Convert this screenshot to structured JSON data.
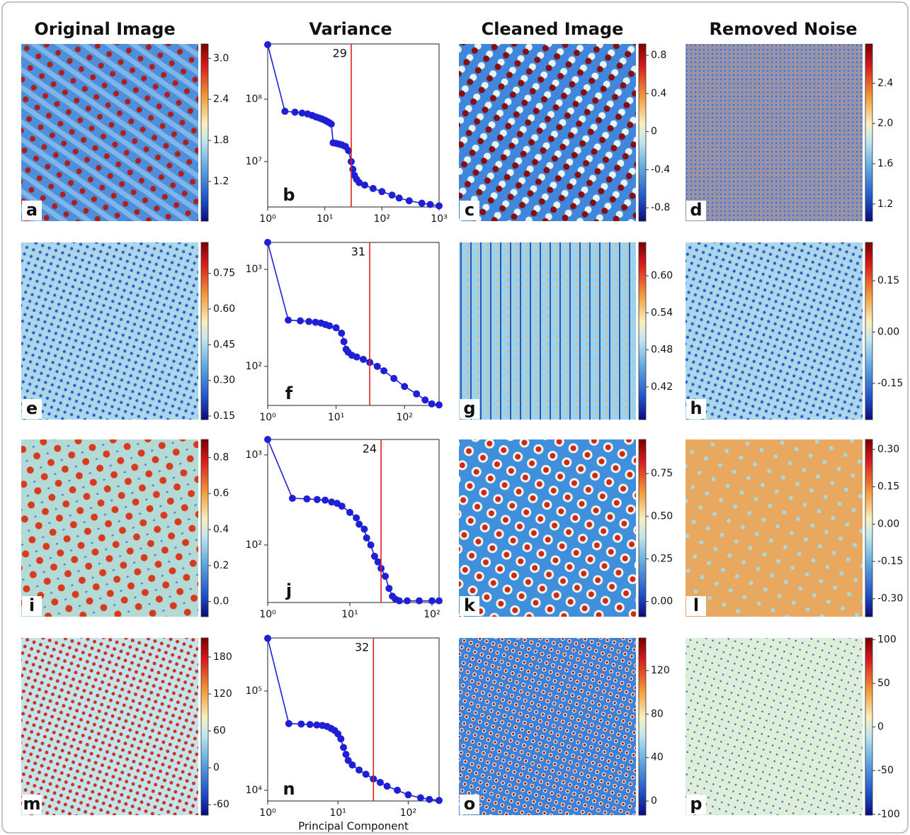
{
  "column_titles": [
    "Original Image",
    "Variance",
    "Cleaned Image",
    "Removed Noise"
  ],
  "chart_data": [
    {
      "type": "heatmap",
      "label": "a",
      "clim": [
        0.62,
        3.21
      ],
      "cticks": [
        {
          "value": 3,
          "label": "3.0"
        },
        2.4,
        1.8,
        1.2
      ]
    },
    {
      "type": "line",
      "label": "b",
      "log_x": true,
      "log_y": true,
      "color": "#1f1fd6",
      "xlim": [
        1,
        1000
      ],
      "ylim": [
        1870000,
        770000000
      ],
      "xticks": [
        {
          "value": 1,
          "label": "10⁰"
        },
        {
          "value": 10,
          "label": "10¹"
        },
        {
          "value": 100,
          "label": "10²"
        },
        {
          "value": 1000,
          "label": "10³"
        }
      ],
      "yticks": [
        {
          "value": 10000000,
          "label": "10⁷"
        },
        {
          "value": 100000000,
          "label": "10⁸"
        }
      ],
      "x": [
        1,
        2,
        3,
        4,
        5,
        6,
        7,
        8,
        9,
        10,
        11,
        12,
        13,
        14,
        16,
        18,
        20,
        23,
        26,
        29,
        31,
        33,
        36,
        40,
        50,
        70,
        100,
        150,
        200,
        300,
        500,
        700,
        1000
      ],
      "values": [
        750000000,
        64000000,
        62000000,
        60000000,
        58000000,
        55000000,
        52000000,
        50000000,
        48000000,
        46000000,
        44000000,
        42000000,
        40000000,
        20000000,
        19500000,
        19000000,
        18500000,
        17500000,
        15000000,
        10000000,
        7500000,
        6000000,
        5200000,
        4600000,
        4200000,
        3700000,
        3300000,
        2900000,
        2600000,
        2350000,
        2150000,
        2050000,
        1950000
      ],
      "cutoff": 29,
      "cutoff_color": "#e0201b"
    },
    {
      "type": "heatmap",
      "label": "c",
      "clim": [
        -0.94,
        0.92
      ],
      "cticks": [
        0.8,
        0.4,
        0,
        -0.4,
        -0.8
      ]
    },
    {
      "type": "heatmap",
      "label": "d",
      "clim": [
        1.03,
        2.79
      ],
      "cticks": [
        2.4,
        {
          "value": 2,
          "label": "2.0"
        },
        1.6,
        1.2
      ]
    },
    {
      "type": "heatmap",
      "label": "e",
      "clim": [
        0.135,
        0.88
      ],
      "cticks": [
        0.75,
        {
          "value": 0.6,
          "label": "0.60"
        },
        0.45,
        {
          "value": 0.3,
          "label": "0.30"
        },
        0.15
      ]
    },
    {
      "type": "line",
      "label": "f",
      "log_x": true,
      "log_y": true,
      "color": "#1f1fd6",
      "xlim": [
        1,
        320
      ],
      "ylim": [
        39.5,
        1900
      ],
      "xticks": [
        {
          "value": 1,
          "label": "10⁰"
        },
        {
          "value": 10,
          "label": "10¹"
        },
        {
          "value": 100,
          "label": "10²"
        }
      ],
      "yticks": [
        {
          "value": 100,
          "label": "10²"
        },
        {
          "value": 1000,
          "label": "10³"
        }
      ],
      "x": [
        1,
        2,
        3,
        4,
        5,
        6,
        7,
        8,
        10,
        12,
        13,
        14,
        15,
        17,
        20,
        25,
        31,
        40,
        50,
        70,
        100,
        150,
        200,
        250,
        320
      ],
      "values": [
        1900,
        300,
        295,
        290,
        285,
        280,
        270,
        262,
        250,
        220,
        180,
        150,
        140,
        130,
        125,
        118,
        110,
        100,
        90,
        75,
        62,
        52,
        45,
        41,
        40
      ],
      "cutoff": 31,
      "cutoff_color": "#e0201b"
    },
    {
      "type": "heatmap",
      "label": "g",
      "clim": [
        0.367,
        0.654
      ],
      "cticks": [
        {
          "value": 0.6,
          "label": "0.60"
        },
        0.54,
        0.48,
        0.42
      ]
    },
    {
      "type": "heatmap",
      "label": "h",
      "clim": [
        -0.256,
        0.262
      ],
      "cticks": [
        0.15,
        {
          "value": 0,
          "label": "0.00"
        },
        -0.15
      ]
    },
    {
      "type": "heatmap",
      "label": "i",
      "clim": [
        -0.084,
        0.9
      ],
      "cticks": [
        0.8,
        0.6,
        0.4,
        0.2,
        {
          "value": 0,
          "label": "0.0"
        }
      ]
    },
    {
      "type": "line",
      "label": "j",
      "log_x": true,
      "log_y": true,
      "color": "#1f1fd6",
      "xlim": [
        1,
        122
      ],
      "ylim": [
        23,
        1485
      ],
      "xticks": [
        {
          "value": 1,
          "label": "10⁰"
        },
        {
          "value": 10,
          "label": "10¹"
        },
        {
          "value": 100,
          "label": "10²"
        }
      ],
      "yticks": [
        {
          "value": 100,
          "label": "10²"
        },
        {
          "value": 1000,
          "label": "10³"
        }
      ],
      "x": [
        1,
        2,
        3,
        4,
        5,
        6,
        7,
        8,
        10,
        12,
        13,
        15,
        16,
        18,
        20,
        22,
        24,
        27,
        30,
        33,
        36,
        40,
        50,
        70,
        100,
        122
      ],
      "values": [
        1485,
        330,
        325,
        320,
        315,
        300,
        290,
        270,
        230,
        200,
        170,
        150,
        120,
        100,
        75,
        65,
        55,
        45,
        33,
        27,
        25,
        24,
        24,
        24,
        24,
        24
      ],
      "cutoff": 24,
      "cutoff_color": "#e0201b"
    },
    {
      "type": "heatmap",
      "label": "k",
      "clim": [
        -0.089,
        0.95
      ],
      "cticks": [
        0.75,
        {
          "value": 0.5,
          "label": "0.50"
        },
        0.25,
        {
          "value": 0,
          "label": "0.00"
        }
      ]
    },
    {
      "type": "heatmap",
      "label": "l",
      "clim": [
        -0.372,
        0.34
      ],
      "cticks": [
        {
          "value": 0.3,
          "label": "0.30"
        },
        0.15,
        {
          "value": 0,
          "label": "0.00"
        },
        -0.15,
        {
          "value": -0.3,
          "label": "-0.30"
        }
      ]
    },
    {
      "type": "heatmap",
      "label": "m",
      "clim": [
        -77,
        211
      ],
      "cticks": [
        180,
        120,
        60,
        0,
        -60
      ]
    },
    {
      "type": "line",
      "label": "n",
      "log_x": true,
      "log_y": true,
      "color": "#1f1fd6",
      "xlim": [
        1,
        275
      ],
      "ylim": [
        7800,
        343000
      ],
      "xticks": [
        {
          "value": 1,
          "label": "10⁰"
        },
        {
          "value": 10,
          "label": "10¹"
        },
        {
          "value": 100,
          "label": "10²"
        }
      ],
      "yticks": [
        {
          "value": 10000,
          "label": "10⁴"
        },
        {
          "value": 100000,
          "label": "10⁵"
        }
      ],
      "x": [
        1,
        2,
        3,
        4,
        5,
        6,
        7,
        8,
        9,
        10,
        11,
        12,
        13,
        14,
        16,
        20,
        25,
        32,
        40,
        50,
        70,
        100,
        150,
        200,
        275
      ],
      "values": [
        340000,
        47000,
        46500,
        46000,
        45500,
        45000,
        44000,
        42000,
        40000,
        37000,
        33000,
        27000,
        23000,
        20000,
        18000,
        16000,
        14500,
        13000,
        12000,
        11000,
        10000,
        9000,
        8400,
        8100,
        7900
      ],
      "xlabel": "Principal Component",
      "cutoff": 32,
      "cutoff_color": "#e0201b"
    },
    {
      "type": "heatmap",
      "label": "o",
      "clim": [
        -13,
        150
      ],
      "cticks": [
        120,
        80,
        40,
        0
      ]
    },
    {
      "type": "heatmap",
      "label": "p",
      "clim": [
        -101,
        102
      ],
      "cticks": [
        100,
        50,
        0,
        -50,
        -100
      ]
    }
  ]
}
